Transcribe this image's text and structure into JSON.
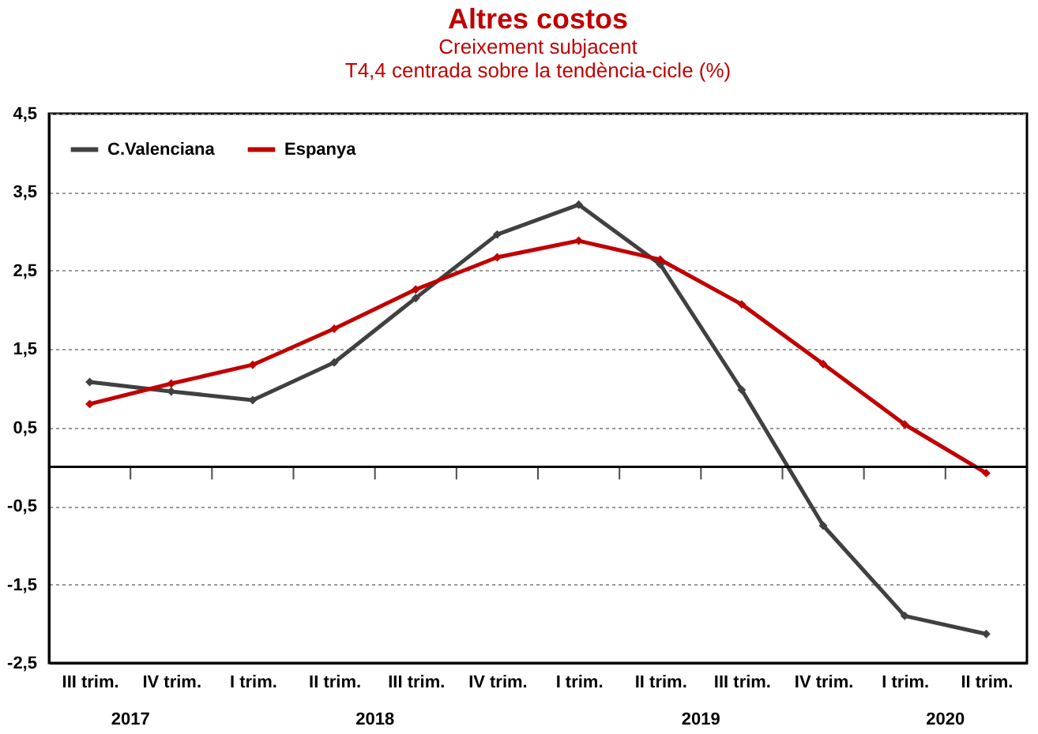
{
  "chart_data": {
    "type": "line",
    "title": "Altres costos",
    "subtitle": "Creixement subjacent\nT4,4 centrada sobre la tendència-cicle (%)",
    "categories": [
      "III trim.",
      "IV trim.",
      "I trim.",
      "II trim.",
      "III trim.",
      "IV trim.",
      "I trim.",
      "II trim.",
      "III trim.",
      "IV trim.",
      "I trim.",
      "II trim."
    ],
    "series": [
      {
        "name": "C.Valenciana",
        "color": "#404040",
        "values": [
          1.08,
          0.96,
          0.85,
          1.33,
          2.15,
          2.96,
          3.34,
          2.58,
          0.98,
          -0.75,
          -1.9,
          -2.13
        ]
      },
      {
        "name": "Espanya",
        "color": "#c00000",
        "values": [
          0.8,
          1.06,
          1.3,
          1.76,
          2.26,
          2.67,
          2.88,
          2.64,
          2.07,
          1.31,
          0.54,
          -0.08
        ]
      }
    ],
    "ylim": [
      -2.5,
      4.5
    ],
    "yticks": [
      {
        "value": -2.5,
        "label": "-2,5"
      },
      {
        "value": -1.5,
        "label": "-1,5"
      },
      {
        "value": -0.5,
        "label": "-0,5"
      },
      {
        "value": 0.5,
        "label": "0,5"
      },
      {
        "value": 1.5,
        "label": "1,5"
      },
      {
        "value": 2.5,
        "label": "2,5"
      },
      {
        "value": 3.5,
        "label": "3,5"
      },
      {
        "value": 4.5,
        "label": "4,5"
      }
    ],
    "ref_lines": [
      {
        "axis": "y",
        "value": 0,
        "label": null,
        "color": "#000000"
      }
    ],
    "annotations": [
      "2017",
      "2018",
      "2019",
      "2020"
    ],
    "grid": "y",
    "legend": "top left",
    "marker": "diamond",
    "line_style": "solid"
  }
}
